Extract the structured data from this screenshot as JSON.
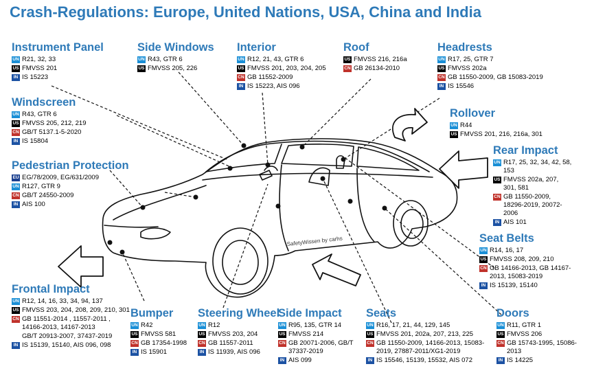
{
  "title": "Crash-Regulations: Europe, United Nations, USA, China and India",
  "colors": {
    "title": "#2e7ab8",
    "UN": "#1a8fd6",
    "US": "#000000",
    "CN": "#c0322b",
    "IN": "#1c52a3",
    "EU": "#1a3f8f"
  },
  "car_label": "SafetyWissen by carhs",
  "sections": [
    {
      "key": "instrument",
      "heading": "Instrument Panel",
      "rows": [
        {
          "badge": "UN",
          "text": "R21, 32, 33"
        },
        {
          "badge": "US",
          "text": "FMVSS 201"
        },
        {
          "badge": "IN",
          "text": "IS 15223"
        }
      ]
    },
    {
      "key": "side-windows",
      "heading": "Side Windows",
      "rows": [
        {
          "badge": "UN",
          "text": "R43, GTR 6"
        },
        {
          "badge": "US",
          "text": "FMVSS 205, 226"
        }
      ]
    },
    {
      "key": "interior",
      "heading": "Interior",
      "rows": [
        {
          "badge": "UN",
          "text": "R12, 21, 43, GTR 6"
        },
        {
          "badge": "US",
          "text": "FMVSS 201, 203, 204, 205"
        },
        {
          "badge": "CN",
          "text": "GB 11552-2009"
        },
        {
          "badge": "IN",
          "text": "IS 15223, AIS 096"
        }
      ]
    },
    {
      "key": "roof",
      "heading": "Roof",
      "rows": [
        {
          "badge": "US",
          "text": "FMVSS 216, 216a"
        },
        {
          "badge": "CN",
          "text": "GB 26134-2010"
        }
      ]
    },
    {
      "key": "headrests",
      "heading": "Headrests",
      "rows": [
        {
          "badge": "UN",
          "text": "R17, 25, GTR 7"
        },
        {
          "badge": "US",
          "text": "FMVSS 202a"
        },
        {
          "badge": "CN",
          "text": "GB 11550-2009, GB 15083-2019"
        },
        {
          "badge": "IN",
          "text": "IS 15546"
        }
      ]
    },
    {
      "key": "windscreen",
      "heading": "Windscreen",
      "rows": [
        {
          "badge": "UN",
          "text": "R43, GTR 6"
        },
        {
          "badge": "US",
          "text": "FMVSS 205, 212, 219"
        },
        {
          "badge": "CN",
          "text": "GB/T 5137.1-5-2020"
        },
        {
          "badge": "IN",
          "text": "IS 15804"
        }
      ]
    },
    {
      "key": "rollover",
      "heading": "Rollover",
      "rows": [
        {
          "badge": "UN",
          "text": "R44"
        },
        {
          "badge": "US",
          "text": "FMVSS 201, 216, 216a, 301"
        }
      ]
    },
    {
      "key": "rear-impact",
      "heading": "Rear Impact",
      "rows": [
        {
          "badge": "UN",
          "text": "R17, 25, 32, 34, 42, 58, 153"
        },
        {
          "badge": "US",
          "text": "FMVSS 202a, 207, 301, 581"
        },
        {
          "badge": "CN",
          "text": "GB 11550-2009, 18296-2019, 20072-2006"
        },
        {
          "badge": "IN",
          "text": "AIS 101"
        }
      ]
    },
    {
      "key": "pedestrian",
      "heading": "Pedestrian Protection",
      "rows": [
        {
          "badge": "EU",
          "text": "EG/78/2009, EG/631/2009"
        },
        {
          "badge": "UN",
          "text": "R127, GTR 9"
        },
        {
          "badge": "CN",
          "text": "GB/T 24550-2009"
        },
        {
          "badge": "IN",
          "text": "AIS 100"
        }
      ]
    },
    {
      "key": "seat-belts",
      "heading": "Seat Belts",
      "rows": [
        {
          "badge": "UN",
          "text": "R14, 16, 17"
        },
        {
          "badge": "US",
          "text": "FMVSS 208, 209, 210"
        },
        {
          "badge": "CN",
          "text": "GB 14166-2013, GB 14167-2013, 15083-2019"
        },
        {
          "badge": "IN",
          "text": "IS 15139, 15140"
        }
      ]
    },
    {
      "key": "frontal",
      "heading": "Frontal Impact",
      "rows": [
        {
          "badge": "UN",
          "text": "R12, 14, 16, 33, 34, 94, 137"
        },
        {
          "badge": "US",
          "text": "FMVSS 203, 204, 208, 209, 210, 301"
        },
        {
          "badge": "CN",
          "text": "GB 11551-2014 , 11557-2011 , 14166-2013, 14167-2013"
        },
        {
          "badge": "",
          "text": "GB/T 20913-2007, 37437-2019"
        },
        {
          "badge": "IN",
          "text": "IS 15139, 15140, AIS 096, 098"
        }
      ]
    },
    {
      "key": "bumper",
      "heading": "Bumper",
      "rows": [
        {
          "badge": "UN",
          "text": "R42"
        },
        {
          "badge": "US",
          "text": "FMVSS 581"
        },
        {
          "badge": "CN",
          "text": "GB 17354-1998"
        },
        {
          "badge": "IN",
          "text": "IS 15901"
        }
      ]
    },
    {
      "key": "steering",
      "heading": "Steering Wheel",
      "rows": [
        {
          "badge": "UN",
          "text": "R12"
        },
        {
          "badge": "US",
          "text": "FMVSS 203, 204"
        },
        {
          "badge": "CN",
          "text": "GB 11557-2011"
        },
        {
          "badge": "IN",
          "text": "IS 11939, AIS 096"
        }
      ]
    },
    {
      "key": "side-impact",
      "heading": "Side Impact",
      "rows": [
        {
          "badge": "UN",
          "text": "R95, 135, GTR 14"
        },
        {
          "badge": "US",
          "text": "FMVSS 214"
        },
        {
          "badge": "CN",
          "text": "GB 20071-2006, GB/T 37337-2019"
        },
        {
          "badge": "IN",
          "text": "AIS 099"
        }
      ]
    },
    {
      "key": "seats",
      "heading": "Seats",
      "rows": [
        {
          "badge": "UN",
          "text": "R16, 17, 21, 44, 129, 145"
        },
        {
          "badge": "US",
          "text": "FMVSS 201, 202a, 207, 213, 225"
        },
        {
          "badge": "CN",
          "text": "GB 11550-2009, 14166-2013, 15083-2019, 27887-2011/XG1-2019"
        },
        {
          "badge": "IN",
          "text": "IS 15546, 15139, 15532, AIS 072"
        }
      ]
    },
    {
      "key": "doors",
      "heading": "Doors",
      "rows": [
        {
          "badge": "UN",
          "text": "R11, GTR 1"
        },
        {
          "badge": "US",
          "text": "FMVSS 206"
        },
        {
          "badge": "CN",
          "text": "GB 15743-1995, 15086-2013"
        },
        {
          "badge": "IN",
          "text": "IS 14225"
        }
      ]
    }
  ]
}
